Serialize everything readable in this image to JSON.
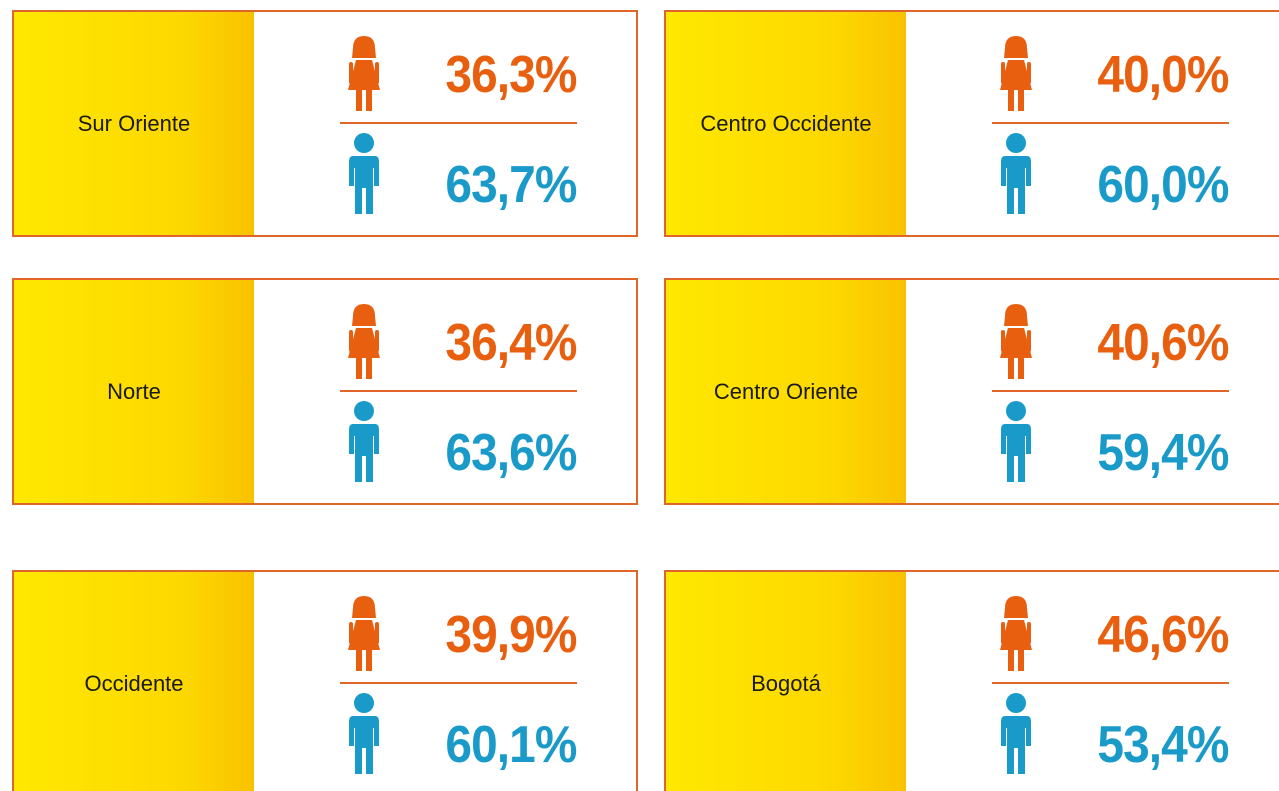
{
  "cards": [
    {
      "region": "Sur Oriente",
      "female": "36,3%",
      "male": "63,7%"
    },
    {
      "region": "Centro Occidente",
      "female": "40,0%",
      "male": "60,0%"
    },
    {
      "region": "Norte",
      "female": "36,4%",
      "male": "63,6%"
    },
    {
      "region": "Centro Oriente",
      "female": "40,6%",
      "male": "59,4%"
    },
    {
      "region": "Occidente",
      "female": "39,9%",
      "male": "60,1%"
    },
    {
      "region": "Bogotá",
      "female": "46,6%",
      "male": "53,4%"
    }
  ]
}
